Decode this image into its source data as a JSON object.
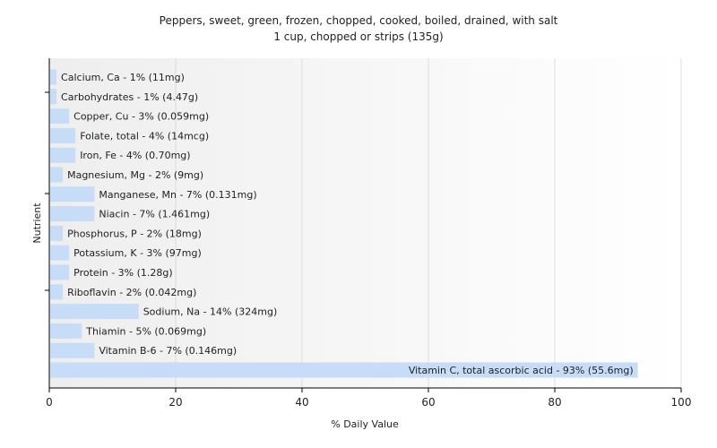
{
  "chart_data": {
    "type": "bar",
    "orientation": "horizontal",
    "title": "Peppers, sweet, green, frozen, chopped, cooked, boiled, drained, with salt",
    "subtitle": "1 cup, chopped or strips (135g)",
    "xlabel": "% Daily Value",
    "ylabel": "Nutrient",
    "xlim": [
      0,
      100
    ],
    "xticks": [
      0,
      20,
      40,
      60,
      80,
      100
    ],
    "grid": true,
    "bar_color": "#c6dcf7",
    "categories": [
      "Calcium, Ca",
      "Carbohydrates",
      "Copper, Cu",
      "Folate, total",
      "Iron, Fe",
      "Magnesium, Mg",
      "Manganese, Mn",
      "Niacin",
      "Phosphorus, P",
      "Potassium, K",
      "Protein",
      "Riboflavin",
      "Sodium, Na",
      "Thiamin",
      "Vitamin B-6",
      "Vitamin C, total ascorbic acid"
    ],
    "values": [
      1,
      1,
      3,
      4,
      4,
      2,
      7,
      7,
      2,
      3,
      3,
      2,
      14,
      5,
      7,
      93
    ],
    "labels": [
      "Calcium, Ca - 1% (11mg)",
      "Carbohydrates - 1% (4.47g)",
      "Copper, Cu - 3% (0.059mg)",
      "Folate, total - 4% (14mcg)",
      "Iron, Fe - 4% (0.70mg)",
      "Magnesium, Mg - 2% (9mg)",
      "Manganese, Mn - 7% (0.131mg)",
      "Niacin - 7% (1.461mg)",
      "Phosphorus, P - 2% (18mg)",
      "Potassium, K - 3% (97mg)",
      "Protein - 3% (1.28g)",
      "Riboflavin - 2% (0.042mg)",
      "Sodium, Na - 14% (324mg)",
      "Thiamin - 5% (0.069mg)",
      "Vitamin B-6 - 7% (0.146mg)",
      "Vitamin C, total ascorbic acid - 93% (55.6mg)"
    ]
  }
}
